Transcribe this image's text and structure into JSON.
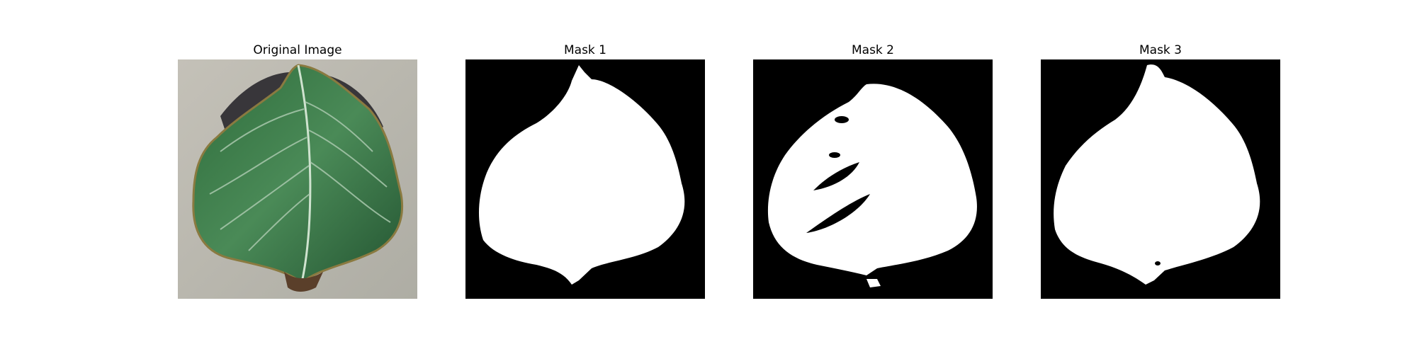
{
  "figure": {
    "panels": [
      {
        "title": "Original Image",
        "kind": "photo",
        "subject": "leaf-on-concrete"
      },
      {
        "title": "Mask 1",
        "kind": "mask",
        "foreground": "#ffffff",
        "background": "#000000"
      },
      {
        "title": "Mask 2",
        "kind": "mask",
        "foreground": "#ffffff",
        "background": "#000000"
      },
      {
        "title": "Mask 3",
        "kind": "mask",
        "foreground": "#ffffff",
        "background": "#000000"
      }
    ]
  },
  "colors": {
    "concrete": "#b9b6ad",
    "shadow": "#3c3a3c",
    "leaf_dark": "#1f5a2e",
    "leaf_mid": "#3d7d4a",
    "leaf_light": "#8fb89a",
    "leaf_edge": "#a08a4a",
    "vein": "#cfe3cf",
    "petiole": "#5a3f2a"
  }
}
